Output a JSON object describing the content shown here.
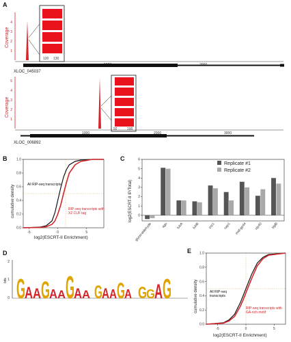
{
  "panels": {
    "A": {
      "label": "A",
      "track1": {
        "ylabel": "Coverage",
        "yticks": [
          "4",
          "3",
          "2",
          "1"
        ],
        "scale_ticks": [
          "1000",
          "2000"
        ],
        "gene": "XLOC_045037",
        "inset_ticks": [
          "120",
          "130"
        ]
      },
      "track2": {
        "ylabel": "Coverage",
        "yticks": [
          "5",
          "4",
          "3",
          "2",
          "1"
        ],
        "scale_ticks": [
          "1000",
          "2000",
          "3000"
        ],
        "gene": "XLOC_006892",
        "inset_ticks": [
          "92",
          "100"
        ]
      }
    },
    "B": {
      "label": "B",
      "ylabel": "cumulative density",
      "xlabel": "log2(ESCRT-II Enrichment)",
      "yticks": [
        "1.0",
        "0.8",
        "0.6",
        "0.4",
        "0.2",
        "0.0"
      ],
      "xticks": [
        "-5",
        "0",
        "5"
      ],
      "legend_all": "All RIP-seq transcripts",
      "legend_rip": "RIP-seq transcripts with X2 CUF tag"
    },
    "C": {
      "label": "C",
      "ylabel": "log2(ESCRT-II IP/Total)",
      "yticks": [
        "6",
        "5",
        "4",
        "3",
        "2",
        "1",
        "0"
      ],
      "legend": [
        "Replicate #1",
        "Replicate #2"
      ]
    },
    "D": {
      "label": "D",
      "ylabel": "bits",
      "yticks": [
        "2",
        "1",
        "0"
      ],
      "logo_groups": [
        "GAAGAAGAA",
        "GAAGA",
        "GGAG"
      ]
    },
    "E": {
      "label": "E",
      "ylabel": "cumulative density",
      "xlabel": "log2(ESCRT-II Enrichment)",
      "yticks": [
        "1.0",
        "0.8",
        "0.6",
        "0.4",
        "0.2",
        "0.0"
      ],
      "xticks": [
        "-5",
        "0",
        "5"
      ],
      "legend_all": "All RIP-seq transcripts",
      "legend_rip": "RIP-seq transcripts with GA-rich motif"
    }
  },
  "colors": {
    "red": "#d6242a",
    "dark_bar": "#555555",
    "light_bar": "#a9a9a9",
    "black": "#111111"
  },
  "chart_data": [
    {
      "type": "bar",
      "panel": "C",
      "categories": [
        "glyceraldehyde",
        "ago",
        "tubA",
        "tubB",
        "crp1",
        "nap1",
        "mid-gp44",
        "nlp40",
        "bglB"
      ],
      "series": [
        {
          "name": "Replicate #1",
          "values": [
            -0.4,
            5.1,
            1.6,
            1.5,
            3.2,
            2.5,
            3.6,
            2.1,
            4.0
          ]
        },
        {
          "name": "Replicate #2",
          "values": [
            -0.3,
            5.0,
            1.6,
            1.4,
            2.9,
            1.6,
            3.0,
            2.8,
            3.4
          ]
        }
      ],
      "ylabel": "log2(ESCRT-II IP/Total)",
      "ylim": [
        -0.6,
        6
      ],
      "legend": "top-right"
    },
    {
      "type": "line",
      "panel": "B",
      "xlabel": "log2(ESCRT-II Enrichment)",
      "ylabel": "cumulative density",
      "xlim": [
        -6,
        8
      ],
      "ylim": [
        0,
        1
      ],
      "series": [
        {
          "name": "All RIP-seq transcripts",
          "x": [
            -6,
            -3,
            -2,
            -1,
            -0.5,
            0,
            0.5,
            1,
            1.5,
            2,
            3,
            4,
            6,
            8
          ],
          "values": [
            0,
            0.01,
            0.03,
            0.1,
            0.22,
            0.4,
            0.58,
            0.74,
            0.85,
            0.92,
            0.97,
            0.99,
            1,
            1
          ]
        },
        {
          "name": "RIP-seq transcripts with X2 CUF tag",
          "x": [
            -6,
            -3,
            -2,
            -1,
            -0.5,
            0,
            0.5,
            1,
            1.5,
            2,
            3,
            4,
            6,
            8
          ],
          "values": [
            0,
            0.005,
            0.015,
            0.05,
            0.1,
            0.2,
            0.33,
            0.5,
            0.66,
            0.8,
            0.92,
            0.97,
            1,
            1
          ]
        }
      ]
    },
    {
      "type": "line",
      "panel": "E",
      "xlabel": "log2(ESCRT-II Enrichment)",
      "ylabel": "cumulative density",
      "xlim": [
        -7,
        7
      ],
      "ylim": [
        0,
        1
      ],
      "series": [
        {
          "name": "All RIP-seq transcripts",
          "x": [
            -7,
            -4,
            -3,
            -2,
            -1,
            -0.5,
            0,
            0.5,
            1,
            2,
            3,
            4,
            7
          ],
          "values": [
            0,
            0.02,
            0.06,
            0.14,
            0.3,
            0.4,
            0.5,
            0.6,
            0.7,
            0.86,
            0.94,
            0.98,
            1
          ]
        },
        {
          "name": "RIP-seq transcripts with GA-rich motif",
          "x": [
            -7,
            -4,
            -3,
            -2,
            -1,
            -0.5,
            0,
            0.5,
            1,
            2,
            3,
            4,
            7
          ],
          "values": [
            0,
            0.015,
            0.045,
            0.11,
            0.25,
            0.34,
            0.44,
            0.54,
            0.64,
            0.82,
            0.92,
            0.97,
            1
          ]
        }
      ]
    }
  ]
}
